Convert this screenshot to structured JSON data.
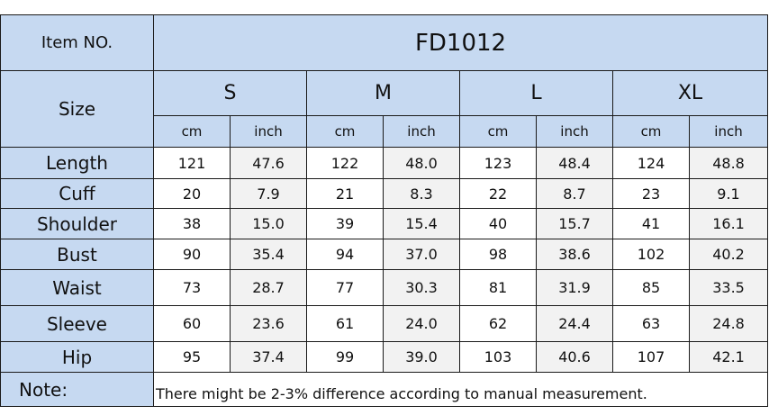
{
  "header": {
    "item_label": "Item NO.",
    "item_code": "FD1012",
    "size_label": "Size"
  },
  "sizes": [
    "S",
    "M",
    "L",
    "XL"
  ],
  "units": [
    "cm",
    "inch"
  ],
  "rows": [
    {
      "label": "Length",
      "values": [
        "121",
        "47.6",
        "122",
        "48.0",
        "123",
        "48.4",
        "124",
        "48.8"
      ]
    },
    {
      "label": "Cuff",
      "values": [
        "20",
        "7.9",
        "21",
        "8.3",
        "22",
        "8.7",
        "23",
        "9.1"
      ]
    },
    {
      "label": "Shoulder",
      "values": [
        "38",
        "15.0",
        "39",
        "15.4",
        "40",
        "15.7",
        "41",
        "16.1"
      ]
    },
    {
      "label": "Bust",
      "values": [
        "90",
        "35.4",
        "94",
        "37.0",
        "98",
        "38.6",
        "102",
        "40.2"
      ]
    },
    {
      "label": "Waist",
      "values": [
        "73",
        "28.7",
        "77",
        "30.3",
        "81",
        "31.9",
        "85",
        "33.5"
      ]
    },
    {
      "label": "Sleeve",
      "values": [
        "60",
        "23.6",
        "61",
        "24.0",
        "62",
        "24.4",
        "63",
        "24.8"
      ]
    },
    {
      "label": "Hip",
      "values": [
        "95",
        "37.4",
        "99",
        "39.0",
        "103",
        "40.6",
        "107",
        "42.1"
      ]
    }
  ],
  "note": {
    "label": "Note:",
    "text": "There might be 2-3% difference according to manual measurement."
  },
  "colors": {
    "header_bg": "#c6d9f1",
    "inch_col_bg": "#f2f2f2",
    "border": "#1a1a1a"
  }
}
